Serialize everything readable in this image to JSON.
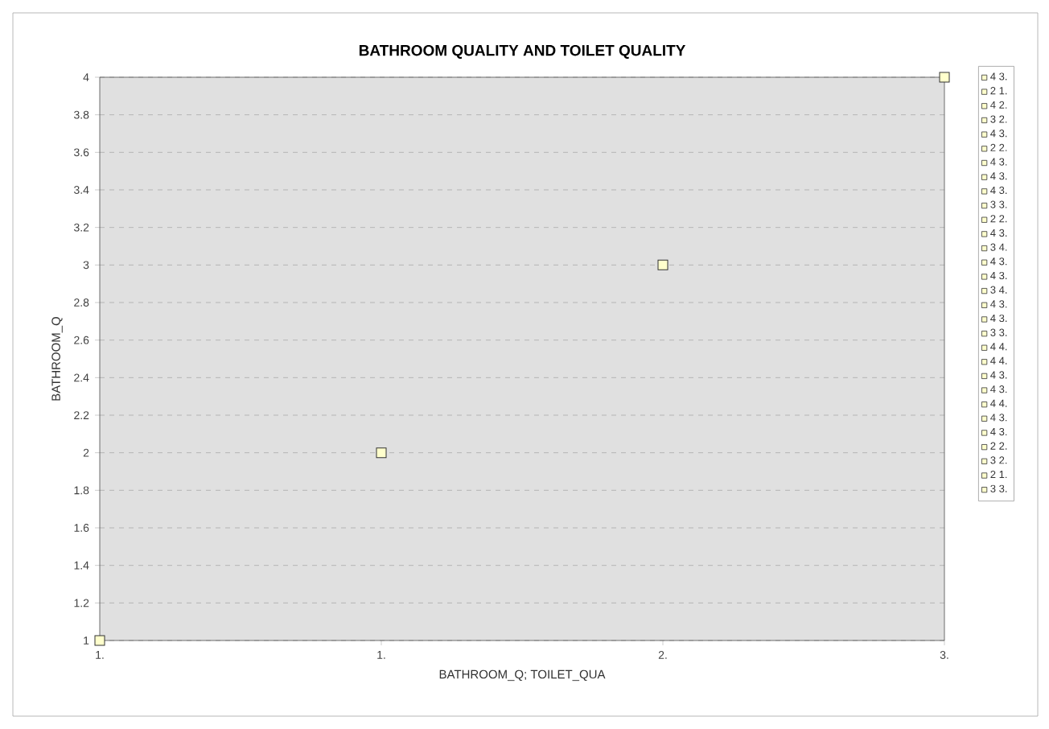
{
  "chart_data": {
    "type": "scatter",
    "title": "BATHROOM QUALITY AND TOILET QUALITY",
    "xlabel": "BATHROOM_Q; TOILET_QUA",
    "ylabel": "BATHROOM_Q",
    "categories": [
      "1.",
      "1.",
      "2.",
      "3."
    ],
    "ylim": [
      1,
      4
    ],
    "yticks": [
      1,
      1.2,
      1.4,
      1.6,
      1.8,
      2,
      2.2,
      2.4,
      2.6,
      2.8,
      3,
      3.2,
      3.4,
      3.6,
      3.8,
      4
    ],
    "grid": "y",
    "legend": "right",
    "marker": "square",
    "series": [
      {
        "color": "#ffffcc",
        "values": [
          1,
          2,
          3,
          4
        ]
      },
      {
        "name": "4 3.",
        "color": "#ffffcc",
        "values": [
          null,
          null,
          null,
          null
        ]
      },
      {
        "name": "2 1.",
        "color": "#ffffcc",
        "values": [
          null,
          null,
          null,
          null
        ]
      },
      {
        "name": "4 2.",
        "color": "#ffffcc",
        "values": [
          null,
          null,
          null,
          null
        ]
      },
      {
        "name": "3 2.",
        "color": "#ffffcc",
        "values": [
          null,
          null,
          null,
          null
        ]
      },
      {
        "name": "4 3.",
        "color": "#ffffcc",
        "values": [
          null,
          null,
          null,
          null
        ]
      },
      {
        "name": "2 2.",
        "color": "#ffffcc",
        "values": [
          null,
          null,
          null,
          null
        ]
      },
      {
        "name": "4 3.",
        "color": "#ffffcc",
        "values": [
          null,
          null,
          null,
          null
        ]
      },
      {
        "name": "4 3.",
        "color": "#ffffcc",
        "values": [
          null,
          null,
          null,
          null
        ]
      },
      {
        "name": "4 3.",
        "color": "#ffffcc",
        "values": [
          null,
          null,
          null,
          null
        ]
      },
      {
        "name": "3 3.",
        "color": "#ffffcc",
        "values": [
          null,
          null,
          null,
          null
        ]
      },
      {
        "name": "2 2.",
        "color": "#ffffcc",
        "values": [
          null,
          null,
          null,
          null
        ]
      },
      {
        "name": "4 3.",
        "color": "#ffffcc",
        "values": [
          null,
          null,
          null,
          null
        ]
      },
      {
        "name": "3 4.",
        "color": "#ffffcc",
        "values": [
          null,
          null,
          null,
          null
        ]
      },
      {
        "name": "4 3.",
        "color": "#ffffcc",
        "values": [
          null,
          null,
          null,
          null
        ]
      },
      {
        "name": "4 3.",
        "color": "#ffffcc",
        "values": [
          null,
          null,
          null,
          null
        ]
      },
      {
        "name": "3 4.",
        "color": "#ffffcc",
        "values": [
          null,
          null,
          null,
          null
        ]
      },
      {
        "name": "4 3.",
        "color": "#ffffcc",
        "values": [
          null,
          null,
          null,
          null
        ]
      },
      {
        "name": "4 3.",
        "color": "#ffffcc",
        "values": [
          null,
          null,
          null,
          null
        ]
      },
      {
        "name": "3 3.",
        "color": "#ffffcc",
        "values": [
          null,
          null,
          null,
          null
        ]
      },
      {
        "name": "4 4.",
        "color": "#ffffcc",
        "values": [
          null,
          null,
          null,
          null
        ]
      },
      {
        "name": "4 4.",
        "color": "#ffffcc",
        "values": [
          null,
          null,
          null,
          null
        ]
      },
      {
        "name": "4 3.",
        "color": "#ffffcc",
        "values": [
          null,
          null,
          null,
          null
        ]
      },
      {
        "name": "4 3.",
        "color": "#ffffcc",
        "values": [
          null,
          null,
          null,
          null
        ]
      },
      {
        "name": "4 4.",
        "color": "#ffffcc",
        "values": [
          null,
          null,
          null,
          null
        ]
      },
      {
        "name": "4 3.",
        "color": "#ffffcc",
        "values": [
          null,
          null,
          null,
          null
        ]
      },
      {
        "name": "4 3.",
        "color": "#ffffcc",
        "values": [
          null,
          null,
          null,
          null
        ]
      },
      {
        "name": "2 2.",
        "color": "#ffffcc",
        "values": [
          null,
          null,
          null,
          null
        ]
      },
      {
        "name": "3 2.",
        "color": "#ffffcc",
        "values": [
          null,
          null,
          null,
          null
        ]
      },
      {
        "name": "2 1.",
        "color": "#ffffcc",
        "values": [
          null,
          null,
          null,
          null
        ]
      },
      {
        "name": "3 3.",
        "color": "#ffffcc",
        "values": [
          null,
          null,
          null,
          null
        ]
      }
    ]
  }
}
